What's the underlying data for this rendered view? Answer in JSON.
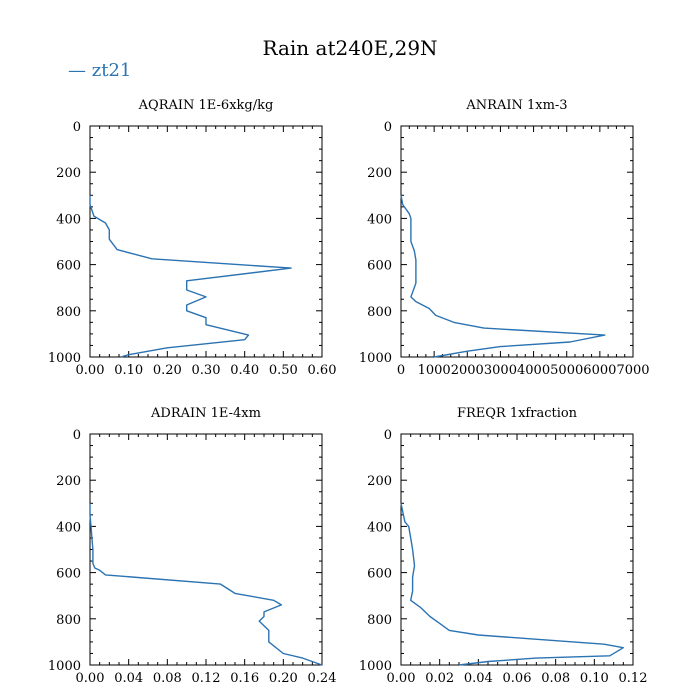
{
  "title": "Rain at240E,29N",
  "legend": {
    "label": "zt21",
    "line_color": "#2b73b2"
  },
  "chart_data": [
    {
      "type": "line",
      "title": "AQRAIN  1E-6xkg/kg",
      "series_name": "zt21",
      "xlim": [
        0,
        0.6
      ],
      "xticks": [
        0.0,
        0.1,
        0.2,
        0.3,
        0.4,
        0.5,
        0.6
      ],
      "xtick_labels": [
        "0.00",
        "0.10",
        "0.20",
        "0.30",
        "0.40",
        "0.50",
        "0.60"
      ],
      "ylim": [
        0,
        1000
      ],
      "yticks": [
        0,
        200,
        400,
        600,
        800,
        1000
      ],
      "ytick_labels": [
        "0",
        "200",
        "400",
        "600",
        "800",
        "1000"
      ],
      "x": [
        0.0,
        0.0,
        0.01,
        0.04,
        0.05,
        0.05,
        0.07,
        0.16,
        0.52,
        0.25,
        0.25,
        0.3,
        0.25,
        0.25,
        0.3,
        0.3,
        0.41,
        0.4,
        0.2,
        0.1,
        0.08
      ],
      "y": [
        300,
        340,
        390,
        420,
        450,
        490,
        535,
        575,
        615,
        670,
        710,
        740,
        775,
        800,
        830,
        860,
        905,
        925,
        960,
        990,
        1000
      ]
    },
    {
      "type": "line",
      "title": "ANRAIN  1xm-3",
      "series_name": "zt21",
      "xlim": [
        0,
        7000
      ],
      "xticks": [
        0,
        1000,
        2000,
        3000,
        4000,
        5000,
        6000,
        7000
      ],
      "xtick_labels": [
        "0",
        "1000",
        "2000",
        "3000",
        "4000",
        "5000",
        "6000",
        "7000"
      ],
      "ylim": [
        0,
        1000
      ],
      "yticks": [
        0,
        200,
        400,
        600,
        800,
        1000
      ],
      "ytick_labels": [
        "0",
        "200",
        "400",
        "600",
        "800",
        "1000"
      ],
      "x": [
        0,
        50,
        250,
        300,
        300,
        300,
        400,
        450,
        450,
        450,
        350,
        300,
        450,
        850,
        1050,
        1600,
        2500,
        6150,
        5100,
        3000,
        2000,
        1000
      ],
      "y": [
        300,
        340,
        380,
        400,
        450,
        500,
        540,
        580,
        620,
        680,
        720,
        740,
        760,
        790,
        820,
        850,
        875,
        905,
        935,
        955,
        975,
        1000
      ]
    },
    {
      "type": "line",
      "title": "ADRAIN  1E-4xm",
      "series_name": "zt21",
      "xlim": [
        0,
        0.24
      ],
      "xticks": [
        0.0,
        0.04,
        0.08,
        0.12,
        0.16,
        0.2,
        0.24
      ],
      "xtick_labels": [
        "0.00",
        "0.04",
        "0.08",
        "0.12",
        "0.16",
        "0.20",
        "0.24"
      ],
      "ylim": [
        0,
        1000
      ],
      "yticks": [
        0,
        200,
        400,
        600,
        800,
        1000
      ],
      "ytick_labels": [
        "0",
        "200",
        "400",
        "600",
        "800",
        "1000"
      ],
      "x": [
        0.0,
        0.0,
        0.001,
        0.002,
        0.003,
        0.003,
        0.005,
        0.01,
        0.016,
        0.135,
        0.15,
        0.19,
        0.198,
        0.18,
        0.18,
        0.175,
        0.18,
        0.185,
        0.185,
        0.2,
        0.22,
        0.24
      ],
      "y": [
        300,
        350,
        400,
        450,
        500,
        560,
        580,
        590,
        610,
        650,
        690,
        720,
        740,
        770,
        790,
        810,
        830,
        850,
        900,
        950,
        970,
        1000
      ]
    },
    {
      "type": "line",
      "title": "FREQR  1xfraction",
      "series_name": "zt21",
      "xlim": [
        0,
        0.12
      ],
      "xticks": [
        0.0,
        0.02,
        0.04,
        0.06,
        0.08,
        0.1,
        0.12
      ],
      "xtick_labels": [
        "0.00",
        "0.02",
        "0.04",
        "0.06",
        "0.08",
        "0.10",
        "0.12"
      ],
      "ylim": [
        0,
        1000
      ],
      "yticks": [
        0,
        200,
        400,
        600,
        800,
        1000
      ],
      "ytick_labels": [
        "0",
        "200",
        "400",
        "600",
        "800",
        "1000"
      ],
      "x": [
        0.0,
        0.001,
        0.002,
        0.004,
        0.005,
        0.006,
        0.007,
        0.006,
        0.006,
        0.005,
        0.01,
        0.015,
        0.02,
        0.025,
        0.04,
        0.105,
        0.115,
        0.108,
        0.07,
        0.045,
        0.03
      ],
      "y": [
        300,
        340,
        380,
        400,
        450,
        500,
        570,
        620,
        680,
        720,
        750,
        790,
        820,
        850,
        870,
        910,
        925,
        960,
        970,
        985,
        1000
      ]
    }
  ]
}
